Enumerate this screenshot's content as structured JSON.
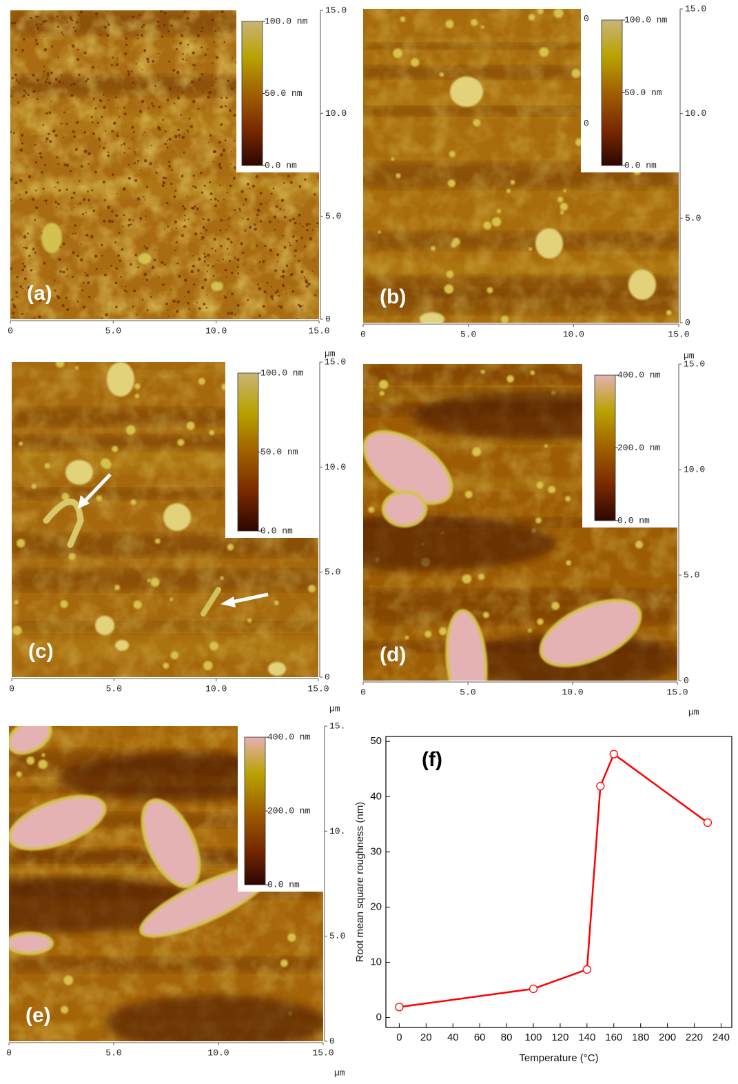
{
  "chart_data": [
    {
      "type": "afm",
      "label": "(a)",
      "xlim": [
        0,
        15
      ],
      "ylim": [
        0,
        15
      ],
      "xticks": [
        0,
        {
          "value": 5,
          "label": "5.0"
        },
        {
          "value": 10,
          "label": "10.0"
        },
        {
          "value": 15,
          "label": "15.0"
        }
      ],
      "yticks": [
        0,
        {
          "value": 5,
          "label": "5.0"
        },
        {
          "value": 10,
          "label": "10.0"
        },
        {
          "value": 15,
          "label": "15.0"
        }
      ],
      "colorbar": {
        "lim": [
          0,
          100
        ],
        "ticks": [
          {
            "value": 0,
            "label": "0.0 nm"
          },
          {
            "value": 50,
            "label": "50.0 nm"
          },
          {
            "value": 100,
            "label": "100.0 nm"
          }
        ],
        "colors": [
          "#2e0600",
          "#7a2a00",
          "#a06000",
          "#b9a200",
          "#c9b478"
        ]
      }
    },
    {
      "type": "afm",
      "label": "(b)",
      "xlim": [
        0,
        15
      ],
      "ylim": [
        0,
        15
      ],
      "xticks": [
        0,
        {
          "value": 5,
          "label": "5.0"
        },
        {
          "value": 10,
          "label": "10.0"
        },
        {
          "value": 15,
          "label": "15.0"
        }
      ],
      "yticks": [
        0,
        {
          "value": 5,
          "label": "5.0"
        },
        {
          "value": 10,
          "label": "10.0"
        },
        {
          "value": 15,
          "label": "15.0"
        }
      ],
      "colorbar": {
        "lim": [
          0,
          100
        ],
        "ticks": [
          {
            "value": 0,
            "label": "0.0 nm"
          },
          {
            "value": 50,
            "label": "50.0 nm"
          },
          {
            "value": 100,
            "label": "100.0 nm"
          }
        ],
        "colors": [
          "#2e0600",
          "#7a2a00",
          "#a06000",
          "#b9a200",
          "#c9b478"
        ],
        "extra_labels": [
          "0",
          "0"
        ]
      }
    },
    {
      "type": "afm",
      "label": "(c)",
      "xlim": [
        0,
        15
      ],
      "ylim": [
        0,
        15
      ],
      "x_unit": "µm",
      "y_unit": "µm",
      "xticks": [
        0,
        {
          "value": 5,
          "label": "5.0"
        },
        {
          "value": 10,
          "label": "10.0"
        },
        {
          "value": 15,
          "label": "15.0"
        }
      ],
      "yticks": [
        0,
        {
          "value": 5,
          "label": "5.0"
        },
        {
          "value": 10,
          "label": "10.0"
        },
        {
          "value": 15,
          "label": "15.0"
        }
      ],
      "colorbar": {
        "lim": [
          0,
          100
        ],
        "ticks": [
          {
            "value": 0,
            "label": "0.0 nm"
          },
          {
            "value": 50,
            "label": "50.0 nm"
          },
          {
            "value": 100,
            "label": "100.0 nm"
          }
        ],
        "colors": [
          "#2e0600",
          "#7a2a00",
          "#a06000",
          "#b9a200",
          "#c9b478"
        ]
      }
    },
    {
      "type": "afm",
      "label": "(d)",
      "xlim": [
        0,
        15
      ],
      "ylim": [
        0,
        15
      ],
      "x_unit": "µm",
      "y_unit": "µm",
      "xticks": [
        0,
        {
          "value": 5,
          "label": "5.0"
        },
        {
          "value": 10,
          "label": "10.0"
        },
        {
          "value": 15,
          "label": "15.0"
        }
      ],
      "yticks": [
        0,
        {
          "value": 5,
          "label": "5.0"
        },
        {
          "value": 10,
          "label": "10.0"
        },
        {
          "value": 15,
          "label": "15.0"
        }
      ],
      "colorbar": {
        "lim": [
          0,
          400
        ],
        "ticks": [
          {
            "value": 0,
            "label": "0.0 nm"
          },
          {
            "value": 200,
            "label": "200.0 nm"
          },
          {
            "value": 400,
            "label": "400.0 nm"
          }
        ],
        "colors": [
          "#2e0600",
          "#7a2a00",
          "#a06000",
          "#b9a200",
          "#e4b2b2"
        ]
      }
    },
    {
      "type": "afm",
      "label": "(e)",
      "xlim": [
        0,
        15
      ],
      "ylim": [
        0,
        15
      ],
      "x_unit": "µm",
      "xticks": [
        0,
        {
          "value": 5,
          "label": "5.0"
        },
        {
          "value": 10,
          "label": "10.0"
        },
        {
          "value": 15,
          "label": "15.0"
        }
      ],
      "yticks": [
        0,
        {
          "value": 5,
          "label": "5.0"
        },
        {
          "value": 10,
          "label": "10."
        },
        {
          "value": 15,
          "label": "15."
        }
      ],
      "colorbar": {
        "lim": [
          0,
          400
        ],
        "ticks": [
          {
            "value": 0,
            "label": "0.0 nm"
          },
          {
            "value": 200,
            "label": "200.0 nm"
          },
          {
            "value": 400,
            "label": "400.0 nm"
          }
        ],
        "colors": [
          "#2e0600",
          "#7a2a00",
          "#a06000",
          "#b9a200",
          "#e4b2b2"
        ]
      }
    },
    {
      "type": "line",
      "label": "(f)",
      "x_label": "Temperature (°C)",
      "y_label": "Root mean square roughness (nm)",
      "x": [
        0,
        100,
        140,
        150,
        160,
        230
      ],
      "series": [
        {
          "color": "#ff0000",
          "values": [
            1.9,
            5.2,
            8.7,
            41.9,
            47.7,
            35.3
          ]
        }
      ],
      "xlim": [
        -10,
        248
      ],
      "ylim": [
        -1.8,
        50.9
      ],
      "xticks": [
        0,
        20,
        40,
        60,
        80,
        100,
        120,
        140,
        160,
        180,
        200,
        220,
        240
      ],
      "yticks": [
        0,
        10,
        20,
        30,
        40,
        50
      ]
    }
  ]
}
